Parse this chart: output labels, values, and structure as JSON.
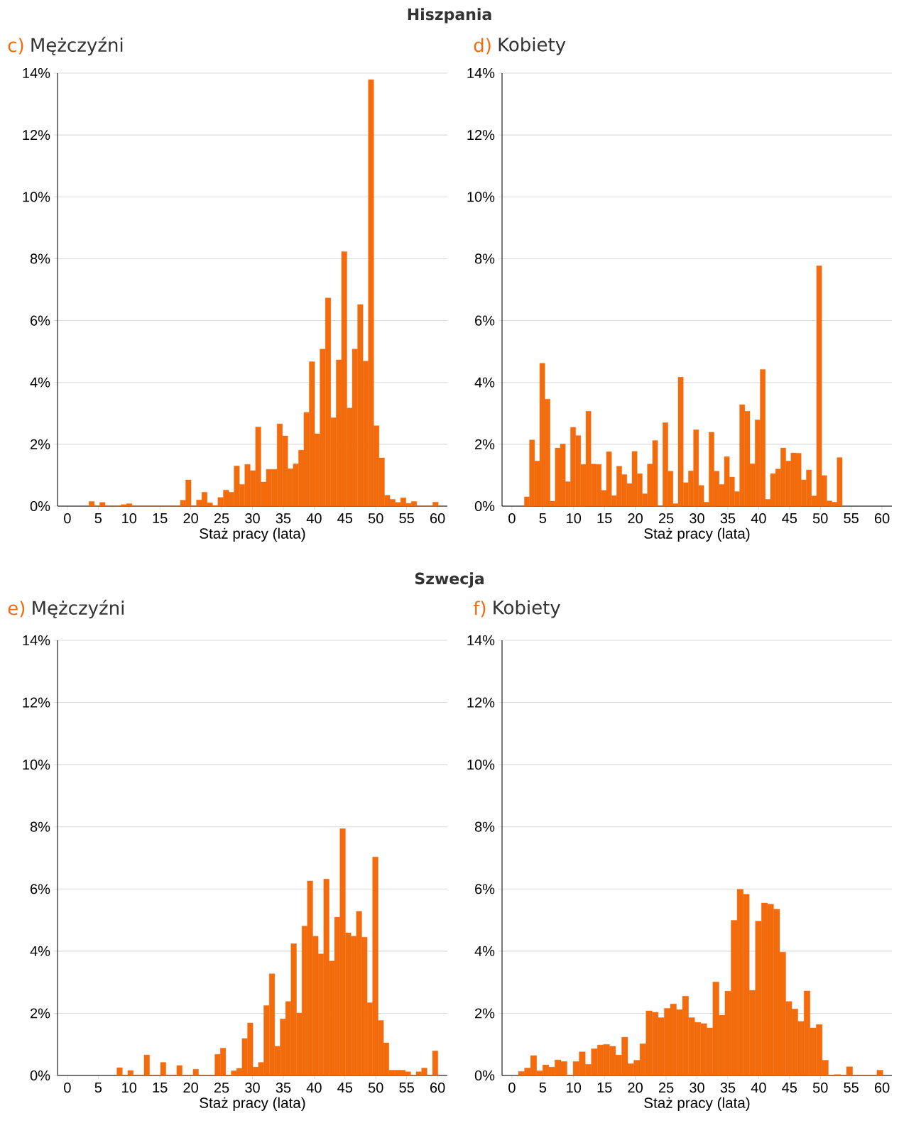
{
  "chart_data": [
    {
      "type": "histogram",
      "subtitle": "Hiszpania",
      "title": "Mężczyźni",
      "annotations": [
        "c)"
      ],
      "xlabel": "Staż pracy (lata)",
      "color": "#f26b0c",
      "grid": "y",
      "xlim": [
        -1.6,
        61.6
      ],
      "ylim": [
        0,
        14
      ],
      "xticks": [
        0,
        5,
        10,
        15,
        20,
        25,
        30,
        35,
        40,
        45,
        50,
        55,
        60
      ],
      "yticks": [
        {
          "value": 0,
          "label": "0%"
        },
        {
          "value": 2,
          "label": "2%"
        },
        {
          "value": 4,
          "label": "4%"
        },
        {
          "value": 6,
          "label": "6%"
        },
        {
          "value": 8,
          "label": "8%"
        },
        {
          "value": 10,
          "label": "10%"
        },
        {
          "value": 12,
          "label": "12%"
        },
        {
          "value": 14,
          "label": "14%"
        }
      ],
      "bins": [
        3.5,
        4.37,
        5.24,
        6.11,
        6.98,
        7.86,
        8.73,
        9.6,
        10.47,
        11.34,
        12.21,
        13.08,
        13.95,
        14.82,
        15.69,
        16.57,
        17.44,
        18.31,
        19.18,
        20.05,
        20.92,
        21.79,
        22.66,
        23.53,
        24.4,
        25.28,
        26.15,
        27.02,
        27.89,
        28.76,
        29.63,
        30.5,
        31.37,
        32.24,
        33.11,
        33.99,
        34.86,
        35.73,
        36.6,
        37.47,
        38.34,
        39.21,
        40.08,
        40.95,
        41.82,
        42.7,
        43.57,
        44.44,
        45.31,
        46.18,
        47.05,
        47.92,
        48.79,
        49.66,
        50.53,
        51.41,
        52.28,
        53.15,
        54.02,
        54.89,
        55.76,
        56.63,
        57.5,
        58.37,
        59.24,
        60.12
      ],
      "values": [
        0.15,
        0,
        0.12,
        0,
        0,
        0,
        0.05,
        0.08,
        0,
        0,
        0,
        0,
        0,
        0,
        0,
        0,
        0,
        0.19,
        0.85,
        0,
        0.2,
        0.45,
        0.11,
        0.02,
        0.28,
        0.52,
        0.45,
        1.3,
        0.7,
        1.35,
        1.15,
        2.56,
        0.78,
        1.19,
        1.19,
        2.66,
        2.27,
        1.21,
        1.37,
        1.81,
        3.03,
        4.67,
        2.34,
        5.08,
        6.73,
        2.86,
        4.73,
        8.23,
        3.17,
        5.08,
        6.52,
        4.69,
        13.79,
        2.6,
        1.56,
        0.35,
        0.22,
        0.12,
        0.27,
        0.09,
        0.15,
        0,
        0,
        0,
        0.13
      ]
    },
    {
      "type": "histogram",
      "title": "Kobiety",
      "annotations": [
        "d)"
      ],
      "xlabel": "Staż pracy (lata)",
      "color": "#f26b0c",
      "grid": "y",
      "xlim": [
        -1.6,
        61.6
      ],
      "ylim": [
        0,
        14
      ],
      "xticks": [
        0,
        5,
        10,
        15,
        20,
        25,
        30,
        35,
        40,
        45,
        50,
        55,
        60
      ],
      "yticks": [
        {
          "value": 0,
          "label": "0%"
        },
        {
          "value": 2,
          "label": "2%"
        },
        {
          "value": 4,
          "label": "4%"
        },
        {
          "value": 6,
          "label": "6%"
        },
        {
          "value": 8,
          "label": "8%"
        },
        {
          "value": 10,
          "label": "10%"
        },
        {
          "value": 12,
          "label": "12%"
        },
        {
          "value": 14,
          "label": "14%"
        }
      ],
      "bins": [
        2.02,
        2.85,
        3.68,
        4.51,
        5.34,
        6.18,
        7.01,
        7.84,
        8.67,
        9.5,
        10.33,
        11.16,
        11.99,
        12.82,
        13.65,
        14.49,
        15.32,
        16.15,
        16.98,
        17.81,
        18.64,
        19.47,
        20.3,
        21.13,
        21.96,
        22.8,
        23.63,
        24.46,
        25.29,
        26.12,
        26.95,
        27.78,
        28.61,
        29.44,
        30.27,
        31.11,
        31.94,
        32.77,
        33.6,
        34.43,
        35.26,
        36.09,
        36.92,
        37.75,
        38.58,
        39.42,
        40.25,
        41.08,
        41.91,
        42.74,
        43.57,
        44.4,
        45.23,
        46.06,
        46.89,
        47.73,
        48.56,
        49.39,
        50.22,
        51.05,
        51.88,
        52.71,
        53.54
      ],
      "values": [
        0.3,
        2.14,
        1.46,
        4.62,
        3.46,
        0.16,
        1.88,
        2.01,
        0.79,
        2.55,
        2.28,
        1.35,
        3.07,
        1.36,
        1.35,
        0.51,
        1.76,
        0.34,
        1.29,
        1.02,
        0.73,
        1.77,
        1.05,
        0.4,
        1.36,
        2.12,
        0,
        2.7,
        1.13,
        0.08,
        4.17,
        0.76,
        1.14,
        2.47,
        0.67,
        0.13,
        2.39,
        1.13,
        0.7,
        1.6,
        0.94,
        0.47,
        3.28,
        3.07,
        1.37,
        2.79,
        4.42,
        0.22,
        1.05,
        1.2,
        1.88,
        1.46,
        1.72,
        1.71,
        0.85,
        1.17,
        0.33,
        7.77,
        0.99,
        0.17,
        0.13,
        1.57
      ]
    },
    {
      "type": "histogram",
      "subtitle": "Szwecja",
      "title": "Mężczyźni",
      "annotations": [
        "e)"
      ],
      "xlabel": "Staż pracy (lata)",
      "color": "#f26b0c",
      "grid": "y",
      "xlim": [
        -1.6,
        61.6
      ],
      "ylim": [
        0,
        14
      ],
      "xticks": [
        0,
        5,
        10,
        15,
        20,
        25,
        30,
        35,
        40,
        45,
        50,
        55,
        60
      ],
      "yticks": [
        {
          "value": 0,
          "label": "0%"
        },
        {
          "value": 2,
          "label": "2%"
        },
        {
          "value": 4,
          "label": "4%"
        },
        {
          "value": 6,
          "label": "6%"
        },
        {
          "value": 8,
          "label": "8%"
        },
        {
          "value": 10,
          "label": "10%"
        },
        {
          "value": 12,
          "label": "12%"
        },
        {
          "value": 14,
          "label": "14%"
        }
      ],
      "bins": [
        8.03,
        8.91,
        9.79,
        10.68,
        11.56,
        12.44,
        13.32,
        14.2,
        15.09,
        15.97,
        16.85,
        17.73,
        18.61,
        19.5,
        20.38,
        21.26,
        22.14,
        23.02,
        23.91,
        24.79,
        25.67,
        26.55,
        27.43,
        28.32,
        29.2,
        30.08,
        30.96,
        31.84,
        32.73,
        33.61,
        34.49,
        35.37,
        36.25,
        37.14,
        38.02,
        38.9,
        39.78,
        40.66,
        41.55,
        42.43,
        43.31,
        44.19,
        45.07,
        45.96,
        46.84,
        47.72,
        48.6,
        49.48,
        50.37,
        51.25,
        52.13,
        53.01,
        53.89,
        54.78,
        55.66,
        56.54,
        57.42,
        58.3,
        59.19,
        60.07
      ],
      "values": [
        0.25,
        0,
        0.16,
        0,
        0,
        0.66,
        0,
        0,
        0.42,
        0,
        0,
        0.32,
        0,
        0,
        0.2,
        0,
        0,
        0,
        0.68,
        0.88,
        0,
        0.15,
        0.23,
        1.19,
        1.69,
        0.27,
        0.42,
        2.25,
        3.27,
        0.94,
        1.82,
        2.38,
        4.24,
        2.01,
        4.81,
        6.26,
        4.48,
        3.91,
        6.32,
        3.68,
        5.09,
        7.94,
        4.59,
        4.48,
        5.28,
        4.45,
        2.34,
        7.03,
        1.77,
        1.05,
        0.17,
        0.17,
        0.17,
        0.12,
        0,
        0.12,
        0.24,
        0,
        0.79
      ]
    },
    {
      "type": "histogram",
      "title": "Kobiety",
      "annotations": [
        "f)"
      ],
      "xlabel": "Staż pracy (lata)",
      "color": "#f26b0c",
      "grid": "y",
      "xlim": [
        -1.6,
        61.6
      ],
      "ylim": [
        0,
        14
      ],
      "xticks": [
        0,
        5,
        10,
        15,
        20,
        25,
        30,
        35,
        40,
        45,
        50,
        55,
        60
      ],
      "yticks": [
        {
          "value": 0,
          "label": "0%"
        },
        {
          "value": 2,
          "label": "2%"
        },
        {
          "value": 4,
          "label": "4%"
        },
        {
          "value": 6,
          "label": "6%"
        },
        {
          "value": 8,
          "label": "8%"
        },
        {
          "value": 10,
          "label": "10%"
        },
        {
          "value": 12,
          "label": "12%"
        },
        {
          "value": 14,
          "label": "14%"
        }
      ],
      "bins": [
        1.05,
        2.04,
        3.02,
        4.01,
        4.99,
        5.98,
        6.96,
        7.95,
        8.93,
        9.92,
        10.9,
        11.89,
        12.87,
        13.86,
        14.84,
        15.83,
        16.81,
        17.8,
        18.78,
        19.77,
        20.75,
        21.74,
        22.72,
        23.71,
        24.69,
        25.68,
        26.66,
        27.65,
        28.63,
        29.62,
        30.6,
        31.59,
        32.57,
        33.56,
        34.54,
        35.53,
        36.51,
        37.5,
        38.48,
        39.47,
        40.45,
        41.44,
        42.42,
        43.41,
        44.39,
        45.38,
        46.36,
        47.35,
        48.33,
        49.32,
        50.3,
        51.29,
        52.27,
        53.26,
        54.24,
        55.23,
        56.21,
        57.2,
        58.18,
        59.17,
        60.15
      ],
      "values": [
        0.13,
        0.24,
        0.64,
        0.15,
        0.34,
        0.27,
        0.5,
        0.45,
        0,
        0.45,
        0.76,
        0.36,
        0.86,
        0.98,
        1.0,
        0.94,
        0.66,
        1.23,
        0.38,
        0.49,
        1.02,
        2.08,
        2.03,
        1.86,
        2.16,
        2.3,
        2.12,
        2.55,
        1.86,
        1.71,
        1.67,
        1.53,
        3.01,
        1.94,
        2.71,
        4.99,
        5.99,
        5.83,
        2.74,
        4.97,
        5.55,
        5.51,
        5.35,
        3.97,
        2.38,
        2.14,
        1.74,
        2.72,
        1.53,
        1.64,
        0.49,
        0,
        0.03,
        0,
        0.28,
        0,
        0,
        0,
        0,
        0.17
      ]
    }
  ]
}
